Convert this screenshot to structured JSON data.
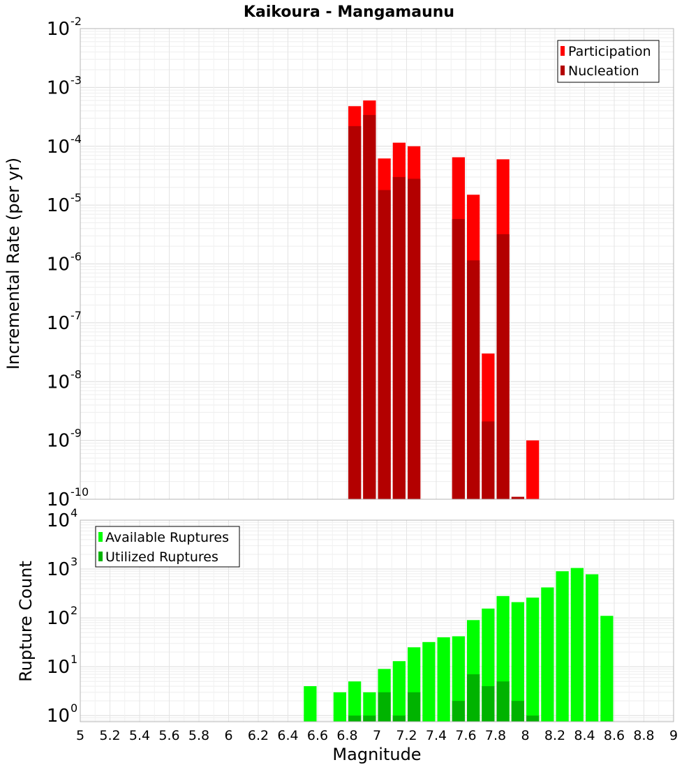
{
  "chart_data": [
    {
      "type": "bar",
      "title": "Kaikoura - Mangamaunu",
      "ylabel": "Incremental Rate (per yr)",
      "xlim": [
        5,
        9
      ],
      "ylim": [
        1e-10,
        0.01
      ],
      "yscale": "log",
      "grid": true,
      "legend_position": "top-right",
      "bar_width": 0.1,
      "y_tick_exponents": [
        "-2",
        "-3",
        "-4",
        "-5",
        "-6",
        "-7",
        "-8",
        "-9",
        "-10"
      ],
      "series": [
        {
          "name": "Participation",
          "color": "#ff0000",
          "points": [
            {
              "x": 6.85,
              "y": 0.00048
            },
            {
              "x": 6.95,
              "y": 0.0006
            },
            {
              "x": 7.05,
              "y": 6.2e-05
            },
            {
              "x": 7.15,
              "y": 0.000115
            },
            {
              "x": 7.25,
              "y": 0.0001
            },
            {
              "x": 7.55,
              "y": 6.5e-05
            },
            {
              "x": 7.65,
              "y": 1.5e-05
            },
            {
              "x": 7.75,
              "y": 3e-08
            },
            {
              "x": 7.85,
              "y": 6e-05
            },
            {
              "x": 8.05,
              "y": 1e-09
            }
          ]
        },
        {
          "name": "Nucleation",
          "color": "#b30000",
          "points": [
            {
              "x": 6.85,
              "y": 0.00022
            },
            {
              "x": 6.95,
              "y": 0.00034
            },
            {
              "x": 7.05,
              "y": 1.8e-05
            },
            {
              "x": 7.15,
              "y": 3e-05
            },
            {
              "x": 7.25,
              "y": 2.8e-05
            },
            {
              "x": 7.55,
              "y": 5.8e-06
            },
            {
              "x": 7.65,
              "y": 1.15e-06
            },
            {
              "x": 7.75,
              "y": 2.1e-09
            },
            {
              "x": 7.85,
              "y": 3.2e-06
            },
            {
              "x": 7.95,
              "y": 1.1e-10
            }
          ]
        }
      ]
    },
    {
      "type": "bar",
      "xlabel": "Magnitude",
      "ylabel": "Rupture Count",
      "xlim": [
        5,
        9
      ],
      "ylim": [
        0.75,
        10000
      ],
      "yscale": "log",
      "grid": true,
      "legend_position": "top-left",
      "bar_width": 0.1,
      "x_ticks": [
        "5",
        "5.2",
        "5.4",
        "5.6",
        "5.8",
        "6",
        "6.2",
        "6.4",
        "6.6",
        "6.8",
        "7",
        "7.2",
        "7.4",
        "7.6",
        "7.8",
        "8",
        "8.2",
        "8.4",
        "8.6",
        "8.8",
        "9"
      ],
      "y_tick_exponents": [
        "4",
        "3",
        "2",
        "1",
        "0"
      ],
      "series": [
        {
          "name": "Available Ruptures",
          "color": "#00ff00",
          "points": [
            {
              "x": 6.55,
              "y": 4
            },
            {
              "x": 6.75,
              "y": 3
            },
            {
              "x": 6.85,
              "y": 5
            },
            {
              "x": 6.95,
              "y": 3
            },
            {
              "x": 7.05,
              "y": 9
            },
            {
              "x": 7.15,
              "y": 13
            },
            {
              "x": 7.25,
              "y": 25
            },
            {
              "x": 7.35,
              "y": 32
            },
            {
              "x": 7.45,
              "y": 40
            },
            {
              "x": 7.55,
              "y": 42
            },
            {
              "x": 7.65,
              "y": 90
            },
            {
              "x": 7.75,
              "y": 155
            },
            {
              "x": 7.85,
              "y": 280
            },
            {
              "x": 7.95,
              "y": 210
            },
            {
              "x": 8.05,
              "y": 260
            },
            {
              "x": 8.15,
              "y": 420
            },
            {
              "x": 8.25,
              "y": 900
            },
            {
              "x": 8.35,
              "y": 1050
            },
            {
              "x": 8.45,
              "y": 780
            },
            {
              "x": 8.55,
              "y": 110
            }
          ]
        },
        {
          "name": "Utilized Ruptures",
          "color": "#00b300",
          "points": [
            {
              "x": 6.85,
              "y": 1
            },
            {
              "x": 6.95,
              "y": 1
            },
            {
              "x": 7.05,
              "y": 3
            },
            {
              "x": 7.15,
              "y": 1
            },
            {
              "x": 7.25,
              "y": 3
            },
            {
              "x": 7.55,
              "y": 2
            },
            {
              "x": 7.65,
              "y": 7
            },
            {
              "x": 7.75,
              "y": 4
            },
            {
              "x": 7.85,
              "y": 5
            },
            {
              "x": 7.95,
              "y": 2
            },
            {
              "x": 8.05,
              "y": 1
            }
          ]
        }
      ]
    }
  ]
}
